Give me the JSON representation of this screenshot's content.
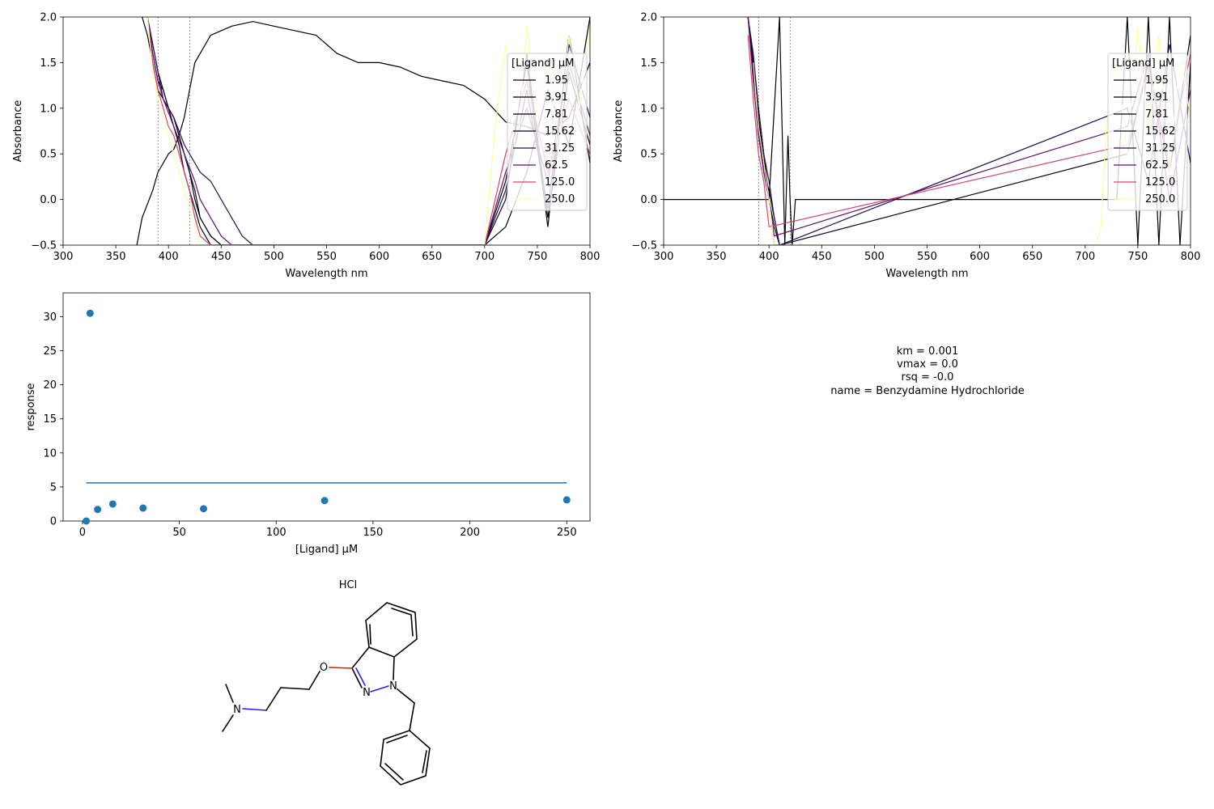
{
  "colors": {
    "conc_palette": [
      "#000004",
      "#000004",
      "#010106",
      "#0a0722",
      "#271055",
      "#5c126e",
      "#d3436e",
      "#fcffa4"
    ],
    "fit": "#1f77b4",
    "axis": "#000000",
    "molecule": {
      "carbon": "#000000",
      "nitrogen": "#2020ff",
      "oxygen": "#ff0d0d",
      "chlorine": "#1fdf1f"
    }
  },
  "chart_data": [
    {
      "type": "line",
      "panel": "raw-spectra",
      "xlabel": "Wavelength nm",
      "ylabel": "Absorbance",
      "xlim": [
        300,
        800
      ],
      "ylim": [
        -0.5,
        2.0
      ],
      "xticks": [
        "300",
        "350",
        "400",
        "450",
        "500",
        "550",
        "600",
        "650",
        "700",
        "750",
        "800"
      ],
      "yticks": [
        "−0.5",
        "0.0",
        "0.5",
        "1.0",
        "1.5",
        "2.0"
      ],
      "reference_lines": [
        390,
        420
      ],
      "legend": {
        "title": "[Ligand] µM",
        "placement": "right",
        "entries": [
          "1.95",
          "3.91",
          "7.81",
          "15.62",
          "31.25",
          "62.5",
          "125.0",
          "250.0"
        ]
      },
      "series": [
        {
          "label": "1.95",
          "x": [
            370,
            375,
            380,
            385,
            390,
            395,
            400,
            405,
            410,
            415,
            420,
            425,
            430,
            435,
            440,
            450,
            460,
            480,
            500,
            520,
            540,
            560,
            580,
            600,
            620,
            640,
            660,
            680,
            700,
            720,
            740,
            760,
            780,
            800
          ],
          "y": [
            -0.5,
            -0.2,
            -0.05,
            0.1,
            0.3,
            0.4,
            0.5,
            0.55,
            0.7,
            0.9,
            1.2,
            1.5,
            1.6,
            1.7,
            1.8,
            1.85,
            1.9,
            1.95,
            1.9,
            1.85,
            1.8,
            1.6,
            1.5,
            1.5,
            1.45,
            1.35,
            1.3,
            1.25,
            1.1,
            0.85,
            0.8,
            0.7,
            0.9,
            1.5
          ]
        },
        {
          "label": "3.91",
          "x": [
            375,
            380,
            385,
            390,
            395,
            400,
            405,
            410,
            415,
            420,
            425,
            430,
            440,
            450,
            460,
            480,
            500,
            550,
            600,
            650,
            700,
            720,
            740,
            760,
            780,
            800
          ],
          "y": [
            2.0,
            1.8,
            1.5,
            1.2,
            1.1,
            1.0,
            0.9,
            0.7,
            0.5,
            0.3,
            0.0,
            -0.2,
            -0.4,
            -0.5,
            -0.5,
            -0.5,
            -0.5,
            -0.5,
            -0.5,
            -0.5,
            -0.5,
            -0.3,
            0.3,
            1.2,
            0.6,
            2.0
          ]
        },
        {
          "label": "7.81",
          "x": [
            380,
            385,
            390,
            395,
            400,
            405,
            410,
            415,
            420,
            425,
            430,
            440,
            450,
            460,
            700,
            720,
            740,
            760,
            780,
            800
          ],
          "y": [
            2.0,
            1.6,
            1.3,
            1.2,
            1.0,
            0.8,
            0.6,
            0.3,
            0.1,
            -0.1,
            -0.3,
            -0.5,
            -0.5,
            -0.5,
            -0.5,
            0.2,
            1.5,
            -0.3,
            1.8,
            0.4
          ]
        },
        {
          "label": "15.62",
          "x": [
            380,
            385,
            390,
            395,
            400,
            405,
            410,
            415,
            420,
            425,
            430,
            440,
            450,
            460,
            700,
            720,
            740,
            760,
            780,
            800
          ],
          "y": [
            2.0,
            1.7,
            1.4,
            1.2,
            1.0,
            0.9,
            0.7,
            0.5,
            0.3,
            0.1,
            -0.2,
            -0.4,
            -0.5,
            -0.5,
            -0.5,
            0.0,
            1.6,
            -0.2,
            1.4,
            0.6
          ]
        },
        {
          "label": "31.25",
          "x": [
            380,
            385,
            390,
            395,
            400,
            405,
            410,
            415,
            420,
            425,
            430,
            440,
            450,
            460,
            470,
            480,
            700,
            720,
            740,
            760,
            780,
            800
          ],
          "y": [
            2.0,
            1.7,
            1.4,
            1.1,
            1.0,
            0.9,
            0.75,
            0.6,
            0.5,
            0.4,
            0.3,
            0.2,
            0.0,
            -0.2,
            -0.4,
            -0.5,
            -0.5,
            0.1,
            1.2,
            -0.1,
            1.7,
            0.9
          ]
        },
        {
          "label": "62.5",
          "x": [
            380,
            385,
            390,
            395,
            400,
            405,
            410,
            415,
            420,
            425,
            430,
            440,
            450,
            460,
            470,
            700,
            720,
            740,
            760,
            780,
            800
          ],
          "y": [
            2.0,
            1.6,
            1.3,
            1.1,
            0.95,
            0.8,
            0.65,
            0.5,
            0.35,
            0.2,
            0.0,
            -0.2,
            -0.4,
            -0.5,
            -0.5,
            -0.5,
            0.3,
            1.0,
            0.2,
            1.5,
            0.7
          ]
        },
        {
          "label": "125.0",
          "x": [
            380,
            385,
            390,
            395,
            400,
            405,
            410,
            415,
            420,
            425,
            430,
            440,
            700,
            720,
            740,
            760,
            780,
            800
          ],
          "y": [
            2.0,
            1.5,
            1.2,
            1.0,
            0.8,
            0.7,
            0.5,
            0.3,
            0.1,
            -0.2,
            -0.4,
            -0.5,
            -0.5,
            0.5,
            1.3,
            0.3,
            1.1,
            0.5
          ]
        },
        {
          "label": "250.0",
          "x": [
            380,
            385,
            390,
            395,
            400,
            405,
            410,
            415,
            420,
            425,
            430,
            700,
            710,
            720,
            730,
            740,
            750,
            760,
            770,
            780,
            790,
            800
          ],
          "y": [
            2.0,
            1.4,
            1.1,
            0.9,
            0.7,
            0.5,
            0.3,
            0.1,
            -0.1,
            -0.3,
            -0.5,
            -0.5,
            0.8,
            1.7,
            0.4,
            1.9,
            0.9,
            1.6,
            0.5,
            1.8,
            1.0,
            1.9
          ]
        }
      ]
    },
    {
      "type": "line",
      "panel": "difference-spectra",
      "xlabel": "Wavelength nm",
      "ylabel": "Absorbance",
      "xlim": [
        300,
        800
      ],
      "ylim": [
        -0.5,
        2.0
      ],
      "xticks": [
        "300",
        "350",
        "400",
        "450",
        "500",
        "550",
        "600",
        "650",
        "700",
        "750",
        "800"
      ],
      "yticks": [
        "−0.5",
        "0.0",
        "0.5",
        "1.0",
        "1.5",
        "2.0"
      ],
      "reference_lines": [
        390,
        420
      ],
      "legend": {
        "title": "[Ligand] µM",
        "placement": "right",
        "entries": [
          "1.95",
          "3.91",
          "7.81",
          "15.62",
          "31.25",
          "62.5",
          "125.0",
          "250.0"
        ]
      },
      "series": [
        {
          "label": "1.95",
          "x": [
            300,
            400,
            405,
            410,
            415,
            418,
            420,
            422,
            425,
            730,
            740,
            750,
            760,
            770,
            780,
            790,
            800
          ],
          "y": [
            0,
            0,
            1.0,
            2.0,
            -0.5,
            0.7,
            0.0,
            -0.5,
            0,
            0,
            2.0,
            -0.5,
            2.0,
            -0.5,
            2.0,
            -0.5,
            1.5
          ]
        },
        {
          "label": "3.91",
          "x": [
            380,
            385,
            390,
            395,
            400,
            405,
            410,
            415
          ],
          "y": [
            2.0,
            1.5,
            1.0,
            0.5,
            0.0,
            -0.5,
            -0.5,
            -0.5
          ]
        },
        {
          "label": "7.81",
          "x": [
            380,
            385,
            390,
            395,
            400,
            405,
            410
          ],
          "y": [
            2.0,
            1.4,
            0.9,
            0.4,
            0.0,
            -0.3,
            -0.5
          ]
        },
        {
          "label": "15.62",
          "x": [
            380,
            385,
            390,
            395,
            400,
            405,
            410,
            740,
            760,
            780,
            800
          ],
          "y": [
            2.0,
            1.5,
            0.8,
            0.3,
            0.1,
            -0.2,
            -0.5,
            0.5,
            1.5,
            0.3,
            1.8
          ]
        },
        {
          "label": "31.25",
          "x": [
            380,
            385,
            390,
            395,
            400,
            405,
            410,
            740,
            760,
            780,
            800
          ],
          "y": [
            2.0,
            1.6,
            1.0,
            0.5,
            0.2,
            -0.2,
            -0.5,
            1.0,
            0.2,
            1.7,
            0.4
          ]
        },
        {
          "label": "62.5",
          "x": [
            380,
            385,
            390,
            395,
            400,
            405,
            740,
            760,
            780,
            800
          ],
          "y": [
            2.0,
            1.3,
            0.7,
            0.3,
            0.0,
            -0.4,
            0.8,
            1.6,
            0.0,
            1.2
          ]
        },
        {
          "label": "125.0",
          "x": [
            380,
            385,
            390,
            395,
            400,
            740,
            760,
            780,
            800
          ],
          "y": [
            1.8,
            1.1,
            0.5,
            0.2,
            -0.3,
            0.6,
            1.4,
            0.4,
            1.6
          ]
        },
        {
          "label": "250.0",
          "x": [
            385,
            390,
            395,
            400,
            405,
            710,
            715,
            720,
            730,
            740,
            750,
            760,
            770,
            780,
            790,
            800
          ],
          "y": [
            1.5,
            0.8,
            0.4,
            0.0,
            -0.5,
            -0.5,
            -0.3,
            0.8,
            1.5,
            0.5,
            1.9,
            0.7,
            1.8,
            0.3,
            1.6,
            0.9
          ]
        }
      ]
    },
    {
      "type": "scatter",
      "panel": "binding-curve",
      "xlabel": "[Ligand] µM",
      "ylabel": "response",
      "xlim": [
        -10,
        262
      ],
      "ylim": [
        0,
        33.5
      ],
      "xticks": [
        0,
        50,
        100,
        150,
        200,
        250
      ],
      "yticks": [
        0,
        5,
        10,
        15,
        20,
        25,
        30
      ],
      "points": {
        "x": [
          1.95,
          3.91,
          7.81,
          15.62,
          31.25,
          62.5,
          125.0,
          250.0
        ],
        "y": [
          0.0,
          30.5,
          1.7,
          2.5,
          1.9,
          1.8,
          3.0,
          3.1
        ]
      },
      "fit_line": {
        "x": [
          1.95,
          250.0
        ],
        "y": [
          5.6,
          5.6
        ]
      }
    }
  ],
  "fit_results": {
    "km": "km = 0.001",
    "vmax": "vmax = 0.0",
    "rsq": "rsq = -0.0",
    "name": "name = Benzydamine Hydrochloride"
  },
  "molecule": {
    "name": "Benzydamine Hydrochloride",
    "labels": {
      "salt": "HCl",
      "oxygen": "O",
      "nitrogen_ring_a": "N",
      "nitrogen_ring_b": "N",
      "nitrogen_amine": "N"
    }
  }
}
